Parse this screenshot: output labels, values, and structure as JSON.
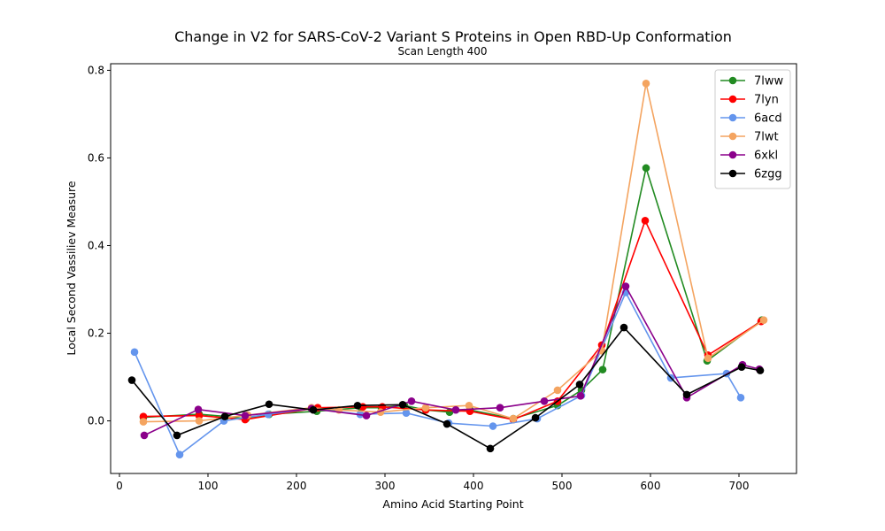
{
  "chart_data": {
    "type": "line",
    "title": "Change in V2 for SARS-CoV-2 Variant S Proteins in Open RBD-Up Conformation",
    "subtitle": "Scan Length 400",
    "xlabel": "Amino Acid Starting Point",
    "ylabel": "Local Second Vassiliev Measure",
    "xlim": [
      -10,
      765
    ],
    "ylim": [
      -0.12,
      0.815
    ],
    "xticks": [
      0,
      100,
      200,
      300,
      400,
      500,
      600,
      700
    ],
    "yticks": [
      0.0,
      0.2,
      0.4,
      0.6,
      0.8
    ],
    "ytick_labels": [
      "0.0",
      "0.2",
      "0.4",
      "0.6",
      "0.8"
    ],
    "grid": false,
    "legend_position": "top-right",
    "series": [
      {
        "name": "7lww",
        "color": "#228b22",
        "x": [
          27,
          90,
          120,
          143,
          169,
          223,
          273,
          296,
          322,
          346,
          373,
          396,
          445,
          495,
          522,
          546,
          595,
          664,
          726
        ],
        "y": [
          0.008,
          0.015,
          0.01,
          0.005,
          0.015,
          0.022,
          0.03,
          0.03,
          0.035,
          0.025,
          0.02,
          0.025,
          0.005,
          0.035,
          0.07,
          0.117,
          0.577,
          0.137,
          0.23
        ]
      },
      {
        "name": "7lyn",
        "color": "#ff0000",
        "x": [
          27,
          90,
          142,
          224,
          275,
          297,
          346,
          396,
          445,
          495,
          545,
          594,
          665,
          725
        ],
        "y": [
          0.01,
          0.012,
          0.003,
          0.03,
          0.032,
          0.032,
          0.025,
          0.022,
          0.003,
          0.045,
          0.173,
          0.457,
          0.15,
          0.227
        ]
      },
      {
        "name": "6acd",
        "color": "#6495ed",
        "x": [
          17,
          68,
          118,
          168,
          217,
          272,
          324,
          372,
          422,
          472,
          522,
          572,
          623,
          686,
          702
        ],
        "y": [
          0.157,
          -0.077,
          0.0,
          0.015,
          0.028,
          0.015,
          0.018,
          -0.005,
          -0.012,
          0.005,
          0.058,
          0.293,
          0.098,
          0.108,
          0.053
        ]
      },
      {
        "name": "7lwt",
        "color": "#f4a460",
        "x": [
          27,
          90,
          145,
          217,
          248,
          295,
          346,
          395,
          445,
          495,
          545,
          595,
          665,
          728
        ],
        "y": [
          -0.002,
          0.0,
          0.013,
          0.03,
          0.025,
          0.02,
          0.03,
          0.035,
          0.005,
          0.07,
          0.16,
          0.77,
          0.143,
          0.23
        ]
      },
      {
        "name": "6xkl",
        "color": "#8b008b",
        "x": [
          28,
          89,
          142,
          217,
          279,
          330,
          380,
          430,
          480,
          521,
          572,
          641,
          704,
          723
        ],
        "y": [
          -0.033,
          0.026,
          0.012,
          0.028,
          0.012,
          0.045,
          0.025,
          0.03,
          0.045,
          0.057,
          0.307,
          0.053,
          0.128,
          0.118
        ]
      },
      {
        "name": "6zgg",
        "color": "#000000",
        "x": [
          14,
          65,
          119,
          169,
          219,
          269,
          320,
          370,
          419,
          470,
          520,
          570,
          641,
          703,
          724
        ],
        "y": [
          0.093,
          -0.033,
          0.01,
          0.038,
          0.025,
          0.035,
          0.037,
          -0.007,
          -0.063,
          0.007,
          0.083,
          0.213,
          0.06,
          0.123,
          0.115
        ]
      }
    ]
  }
}
